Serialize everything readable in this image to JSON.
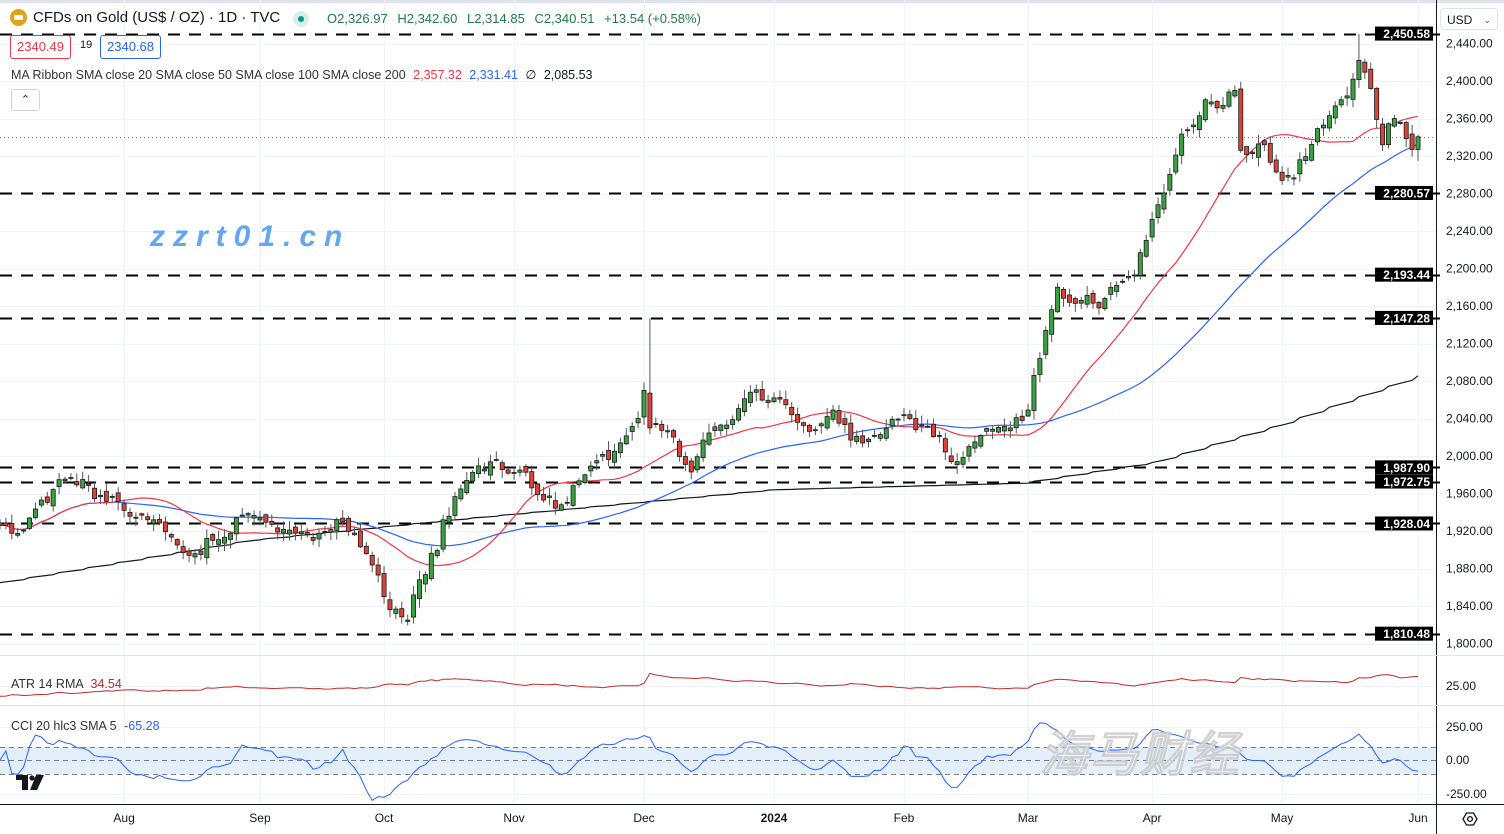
{
  "header": {
    "title": "CFDs on Gold (US$ / OZ) · 1D · TVC",
    "open": "O2,326.97",
    "high": "H2,342.60",
    "low": "L2,314.85",
    "close": "C2,340.51",
    "change": "+13.54 (+0.58%)",
    "bid": "2340.49",
    "spread": "19",
    "ask": "2340.68",
    "collapse_icon": "chevron-up",
    "currency": "USD"
  },
  "ma_legend": {
    "label": "MA Ribbon SMA close 20 SMA close 50 SMA close 100 SMA close 200",
    "v1": "2,357.32",
    "v2": "2,331.41",
    "v3_symbol": "∅",
    "v3": "2,085.53"
  },
  "atr_legend": {
    "label": "ATR 14 RMA",
    "value": "34.54"
  },
  "cci_legend": {
    "label": "CCI 20 hlc3 SMA 5",
    "value": "-65.28"
  },
  "watermark": {
    "line1": "海马财经",
    "line2": "zzrt01.cn"
  },
  "colors": {
    "up": "#3ba043",
    "down": "#d9443a",
    "sma20": "#f23645",
    "sma50": "#2962ff",
    "sma200": "#131722",
    "atr": "#c62828",
    "cci": "#2962ff"
  },
  "chart_data": {
    "type": "candlestick",
    "symbol": "CFDs on Gold (US$ / OZ)",
    "interval": "1D",
    "ylim": [
      1790,
      2460
    ],
    "y_ticks": [
      "2,440.00",
      "2,400.00",
      "2,360.00",
      "2,320.00",
      "2,280.00",
      "2,240.00",
      "2,200.00",
      "2,160.00",
      "2,120.00",
      "2,080.00",
      "2,040.00",
      "2,000.00",
      "1,960.00",
      "1,920.00",
      "1,880.00",
      "1,840.00",
      "1,800.00"
    ],
    "x_ticks": [
      {
        "date": "2023-08-01",
        "label": "Aug"
      },
      {
        "date": "2023-09-01",
        "label": "Sep"
      },
      {
        "date": "2023-10-02",
        "label": "Oct"
      },
      {
        "date": "2023-11-01",
        "label": "Nov"
      },
      {
        "date": "2023-12-01",
        "label": "Dec"
      },
      {
        "date": "2024-01-02",
        "label": "2024"
      },
      {
        "date": "2024-02-01",
        "label": "Feb"
      },
      {
        "date": "2024-03-01",
        "label": "Mar"
      },
      {
        "date": "2024-04-01",
        "label": "Apr"
      },
      {
        "date": "2024-05-01",
        "label": "May"
      },
      {
        "date": "2024-06-03",
        "label": "Jun"
      }
    ],
    "close_keypoints": [
      [
        "2023-07-03",
        1926
      ],
      [
        "2023-07-07",
        1921
      ],
      [
        "2023-07-12",
        1953
      ],
      [
        "2023-07-19",
        1976
      ],
      [
        "2023-07-26",
        1958
      ],
      [
        "2023-08-01",
        1942
      ],
      [
        "2023-08-07",
        1932
      ],
      [
        "2023-08-16",
        1894
      ],
      [
        "2023-08-22",
        1910
      ],
      [
        "2023-08-29",
        1937
      ],
      [
        "2023-09-01",
        1934
      ],
      [
        "2023-09-08",
        1921
      ],
      [
        "2023-09-14",
        1910
      ],
      [
        "2023-09-20",
        1932
      ],
      [
        "2023-09-25",
        1916
      ],
      [
        "2023-09-29",
        1873
      ],
      [
        "2023-10-03",
        1836
      ],
      [
        "2023-10-06",
        1825
      ],
      [
        "2023-10-10",
        1868
      ],
      [
        "2023-10-16",
        1932
      ],
      [
        "2023-10-20",
        1974
      ],
      [
        "2023-10-27",
        1996
      ],
      [
        "2023-11-02",
        1985
      ],
      [
        "2023-11-08",
        1953
      ],
      [
        "2023-11-13",
        1948
      ],
      [
        "2023-11-17",
        1980
      ],
      [
        "2023-11-21",
        1995
      ],
      [
        "2023-11-27",
        2014
      ],
      [
        "2023-11-30",
        2040
      ],
      [
        "2023-12-01",
        2070
      ],
      [
        "2023-12-04",
        2030
      ],
      [
        "2023-12-07",
        2027
      ],
      [
        "2023-12-13",
        1983
      ],
      [
        "2023-12-15",
        2017
      ],
      [
        "2023-12-21",
        2033
      ],
      [
        "2023-12-27",
        2068
      ],
      [
        "2024-01-02",
        2062
      ],
      [
        "2024-01-05",
        2044
      ],
      [
        "2024-01-11",
        2028
      ],
      [
        "2024-01-16",
        2049
      ],
      [
        "2024-01-19",
        2017
      ],
      [
        "2024-01-25",
        2022
      ],
      [
        "2024-02-01",
        2044
      ],
      [
        "2024-02-06",
        2033
      ],
      [
        "2024-02-09",
        2022
      ],
      [
        "2024-02-14",
        1994
      ],
      [
        "2024-02-20",
        2022
      ],
      [
        "2024-02-27",
        2030
      ],
      [
        "2024-03-01",
        2049
      ],
      [
        "2024-03-04",
        2086
      ],
      [
        "2024-03-06",
        2134
      ],
      [
        "2024-03-08",
        2180
      ],
      [
        "2024-03-14",
        2166
      ],
      [
        "2024-03-19",
        2158
      ],
      [
        "2024-03-22",
        2182
      ],
      [
        "2024-03-27",
        2193
      ],
      [
        "2024-03-29",
        2230
      ],
      [
        "2024-04-02",
        2268
      ],
      [
        "2024-04-05",
        2321
      ],
      [
        "2024-04-10",
        2353
      ],
      [
        "2024-04-12",
        2380
      ],
      [
        "2024-04-17",
        2374
      ],
      [
        "2024-04-19",
        2390
      ],
      [
        "2024-04-22",
        2326
      ],
      [
        "2024-04-26",
        2332
      ],
      [
        "2024-05-01",
        2294
      ],
      [
        "2024-05-06",
        2316
      ],
      [
        "2024-05-10",
        2353
      ],
      [
        "2024-05-15",
        2380
      ],
      [
        "2024-05-20",
        2422
      ],
      [
        "2024-05-22",
        2392
      ],
      [
        "2024-05-24",
        2332
      ],
      [
        "2024-05-28",
        2360
      ],
      [
        "2024-05-31",
        2327
      ],
      [
        "2024-06-03",
        2340.51
      ]
    ],
    "high_overrides": [
      [
        "2023-12-04",
        2146.8
      ],
      [
        "2024-05-20",
        2450.1
      ]
    ],
    "last_candle": {
      "date": "2024-06-03",
      "open": 2326.97,
      "high": 2342.6,
      "low": 2314.85,
      "close": 2340.51
    },
    "sma200_keypoints": [
      [
        "2023-07-03",
        1865
      ],
      [
        "2023-08-31",
        1910
      ],
      [
        "2023-10-16",
        1931
      ],
      [
        "2024-01-02",
        1964
      ],
      [
        "2024-03-01",
        1971
      ],
      [
        "2024-04-01",
        1993
      ],
      [
        "2024-05-01",
        2033
      ],
      [
        "2024-06-03",
        2085.53
      ]
    ],
    "horizontal_levels": [
      "2,450.58",
      "2,280.57",
      "2,193.44",
      "2,147.28",
      "1,987.90",
      "1,972.75",
      "1,928.04",
      "1,810.48"
    ],
    "last_price": 2340.51,
    "atr_axis_label": "25.00",
    "cci_axis_labels": [
      "250.00",
      "0.00",
      "-250.00"
    ],
    "cci_band": [
      -100,
      100
    ],
    "grid": true
  }
}
